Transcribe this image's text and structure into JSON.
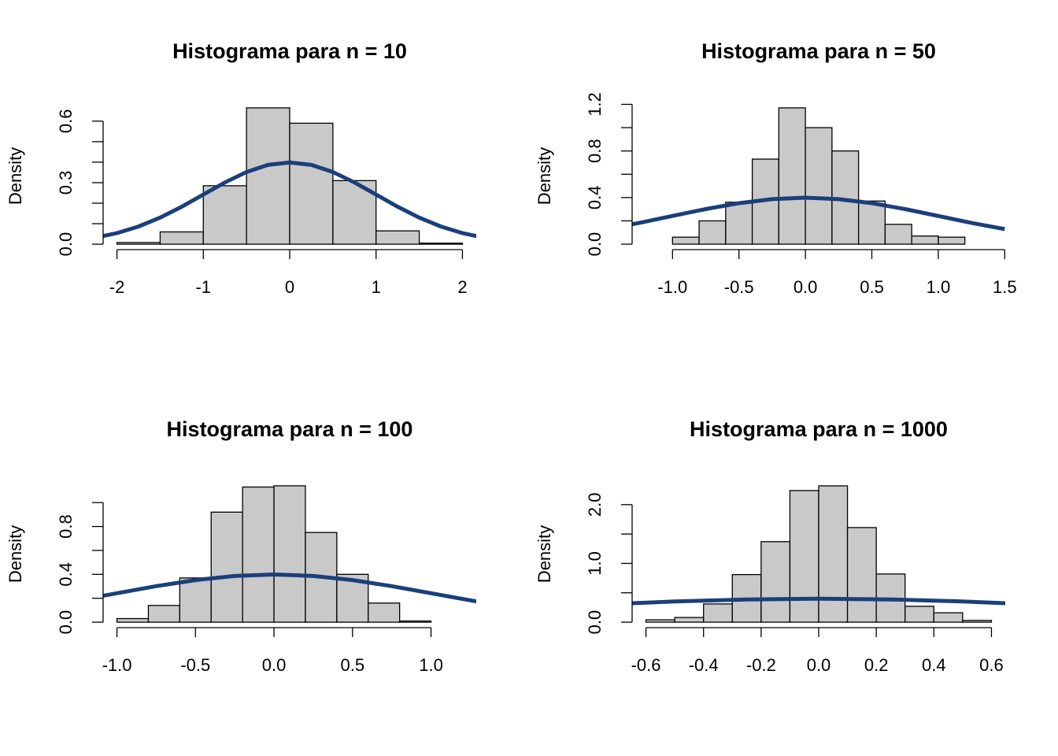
{
  "chart_data": [
    {
      "type": "histogram",
      "title": "Histograma para n = 10",
      "ylabel": "Density",
      "bins": [
        -2,
        -1.5,
        -1,
        -0.5,
        0,
        0.5,
        1,
        1.5,
        2
      ],
      "values": [
        0.008,
        0.06,
        0.285,
        0.665,
        0.59,
        0.31,
        0.065,
        0.005
      ],
      "color": "#c9c9c9",
      "curve_x": [
        -2.25,
        -2,
        -1.75,
        -1.5,
        -1.25,
        -1,
        -0.75,
        -0.5,
        -0.25,
        0,
        0.25,
        0.5,
        0.75,
        1,
        1.25,
        1.5,
        1.75,
        2,
        2.25
      ],
      "curve_y": [
        0.0317,
        0.054,
        0.0863,
        0.1295,
        0.1826,
        0.242,
        0.3011,
        0.3521,
        0.3867,
        0.3989,
        0.3867,
        0.3521,
        0.3011,
        0.242,
        0.1826,
        0.1295,
        0.0863,
        0.054,
        0.0317
      ],
      "curve_color": "#1b3f7b",
      "xlim": [
        -2.16,
        2.16
      ],
      "ylim": [
        -0.0266,
        0.6916
      ],
      "xticks": [
        -2,
        -1,
        0,
        1,
        2
      ],
      "yticks": [
        {
          "value": 0,
          "label": "0.0"
        },
        0.3,
        0.6
      ],
      "yminorticks": [
        0.1,
        0.2,
        0.4,
        0.5
      ]
    },
    {
      "type": "histogram",
      "title": "Histograma para n = 50",
      "ylabel": "Density",
      "bins": [
        -1.2,
        -1,
        -0.8,
        -0.6,
        -0.4,
        -0.2,
        0,
        0.2,
        0.4,
        0.6,
        0.8,
        1,
        1.2,
        1.4
      ],
      "values": [
        0,
        0.06,
        0.2,
        0.36,
        0.73,
        1.17,
        1,
        0.8,
        0.37,
        0.17,
        0.07,
        0.06,
        0
      ],
      "color": "#c9c9c9",
      "curve_x": [
        -1.5,
        -1.25,
        -1,
        -0.75,
        -0.5,
        -0.25,
        0,
        0.25,
        0.5,
        0.75,
        1,
        1.25,
        1.5
      ],
      "curve_y": [
        0.1295,
        0.1826,
        0.242,
        0.3011,
        0.3521,
        0.3867,
        0.3989,
        0.3867,
        0.3521,
        0.3011,
        0.242,
        0.1826,
        0.1295
      ],
      "curve_color": "#1b3f7b",
      "xlim": [
        -1.304,
        1.504
      ],
      "ylim": [
        -0.047,
        1.217
      ],
      "xticks": [
        {
          "value": -1,
          "label": "-1.0"
        },
        -0.5,
        {
          "value": 0,
          "label": "0.0"
        },
        0.5,
        {
          "value": 1,
          "label": "1.0"
        },
        1.5
      ],
      "yticks": [
        {
          "value": 0,
          "label": "0.0"
        },
        0.4,
        0.8,
        1.2
      ],
      "yminorticks": [
        0.2,
        0.6,
        1
      ]
    },
    {
      "type": "histogram",
      "title": "Histograma para n = 100",
      "ylabel": "Density",
      "bins": [
        -1,
        -0.8,
        -0.6,
        -0.4,
        -0.2,
        0,
        0.2,
        0.4,
        0.6,
        0.8,
        1,
        1.2
      ],
      "values": [
        0.03,
        0.14,
        0.37,
        0.92,
        1.13,
        1.14,
        0.75,
        0.4,
        0.16,
        0.01,
        0
      ],
      "color": "#c9c9c9",
      "curve_x": [
        -1.25,
        -1,
        -0.75,
        -0.5,
        -0.25,
        0,
        0.25,
        0.5,
        0.75,
        1,
        1.25,
        1.5
      ],
      "curve_y": [
        0.1826,
        0.242,
        0.3011,
        0.3521,
        0.3867,
        0.3989,
        0.3867,
        0.3521,
        0.3011,
        0.242,
        0.1826,
        0.1295
      ],
      "curve_color": "#1b3f7b",
      "xlim": [
        -1.088,
        1.288
      ],
      "ylim": [
        -0.0456,
        1.1856
      ],
      "xticks": [
        {
          "value": -1,
          "label": "-1.0"
        },
        -0.5,
        {
          "value": 0,
          "label": "0.0"
        },
        0.5,
        {
          "value": 1,
          "label": "1.0"
        }
      ],
      "yticks": [
        {
          "value": 0,
          "label": "0.0"
        },
        0.4,
        0.8
      ],
      "yminorticks": [
        0.2,
        0.6,
        1
      ]
    },
    {
      "type": "histogram",
      "title": "Histograma para n = 1000",
      "ylabel": "Density",
      "bins": [
        -0.6,
        -0.5,
        -0.4,
        -0.3,
        -0.2,
        -0.1,
        0,
        0.1,
        0.2,
        0.3,
        0.4,
        0.5,
        0.6
      ],
      "values": [
        0.04,
        0.08,
        0.31,
        0.81,
        1.37,
        2.24,
        2.32,
        1.61,
        0.82,
        0.27,
        0.16,
        0.03
      ],
      "color": "#c9c9c9",
      "curve_x": [
        -0.75,
        -0.5,
        -0.25,
        0,
        0.25,
        0.5,
        0.75
      ],
      "curve_y": [
        0.3011,
        0.3521,
        0.3867,
        0.3989,
        0.3867,
        0.3521,
        0.3011
      ],
      "curve_color": "#1b3f7b",
      "xlim": [
        -0.648,
        0.648
      ],
      "ylim": [
        -0.093,
        2.413
      ],
      "xticks": [
        -0.6,
        -0.4,
        -0.2,
        {
          "value": 0,
          "label": "0.0"
        },
        0.2,
        0.4,
        0.6
      ],
      "yticks": [
        {
          "value": 0,
          "label": "0.0"
        },
        {
          "value": 1,
          "label": "1.0"
        },
        {
          "value": 2,
          "label": "2.0"
        }
      ],
      "yminorticks": [
        0.5,
        1.5
      ]
    }
  ]
}
